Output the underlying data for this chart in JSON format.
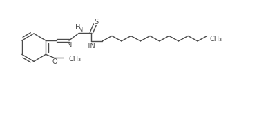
{
  "bg_color": "#ffffff",
  "line_color": "#4a4a4a",
  "line_width": 1.0,
  "font_size": 7.0,
  "figsize": [
    4.02,
    1.75
  ],
  "dpi": 100,
  "xlim": [
    0,
    10.5
  ],
  "ylim": [
    0,
    4.5
  ]
}
